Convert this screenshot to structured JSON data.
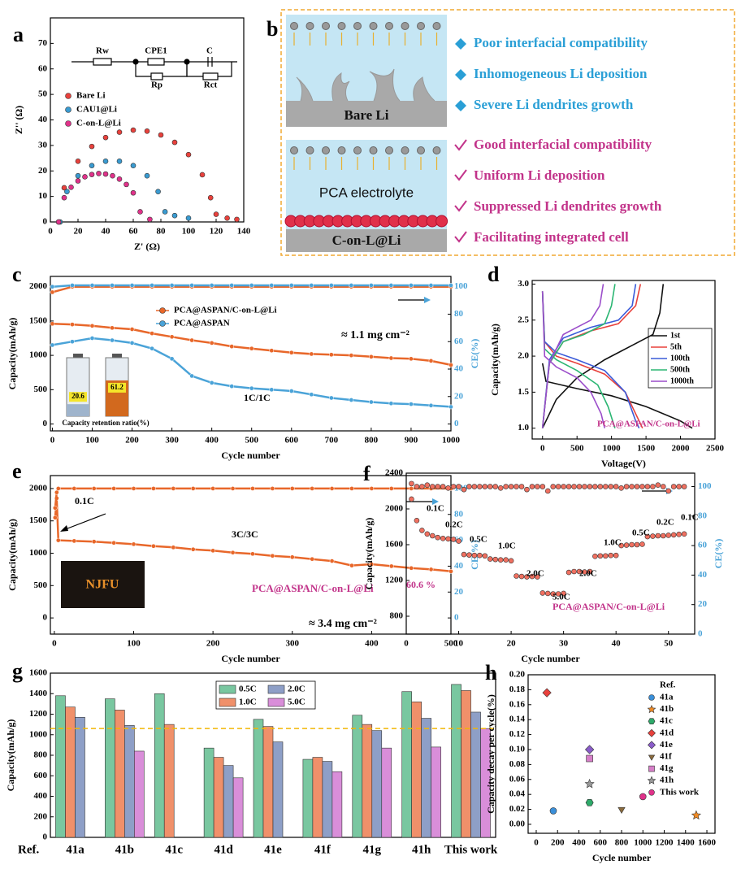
{
  "chart_data": [
    {
      "label": "a",
      "type": "scatter",
      "xlabel": "Z' (Ω)",
      "ylabel": "Z'' (Ω)",
      "xlim": [
        0,
        140
      ],
      "xticks": [
        0,
        20,
        40,
        60,
        80,
        100,
        120,
        140
      ],
      "ylim": [
        0,
        80
      ],
      "yticks": [
        0,
        10,
        20,
        30,
        40,
        50,
        60,
        70
      ],
      "annotations": [
        "Rw",
        "CPE1",
        "Rp",
        "C",
        "Rct"
      ],
      "series": [
        {
          "name": "Bare Li",
          "color": "#e8413c",
          "x": [
            6,
            10,
            20,
            30,
            40,
            50,
            60,
            70,
            80,
            90,
            100,
            110,
            116,
            120,
            128,
            135
          ],
          "values": [
            0,
            13.4,
            23.8,
            29.6,
            33.1,
            35.2,
            36,
            35.6,
            34.1,
            31.2,
            26.4,
            18.5,
            9.5,
            3,
            1.5,
            1
          ]
        },
        {
          "name": "CAU1@Li",
          "color": "#3a9bd1",
          "x": [
            7,
            12,
            20,
            30,
            40,
            50,
            60,
            70,
            78,
            83,
            90,
            100
          ],
          "values": [
            0,
            11.9,
            18.1,
            22.1,
            23.8,
            23.8,
            22.1,
            18.1,
            11.9,
            4,
            2.5,
            1.5
          ]
        },
        {
          "name": "C-on-L@Li",
          "color": "#e0328a",
          "x": [
            6,
            10,
            15,
            20,
            25,
            30,
            35,
            40,
            45,
            50,
            55,
            60,
            65,
            72
          ],
          "values": [
            0,
            9.5,
            13.6,
            16.1,
            17.7,
            18.6,
            19,
            18.8,
            18.1,
            16.8,
            14.7,
            11.4,
            4,
            1
          ]
        }
      ]
    },
    {
      "label": "c",
      "type": "line",
      "marker": true,
      "xlabel": "Cycle number",
      "ylabel": "Capacity(mAh/g)",
      "y2label": "CE(%)",
      "xlim": [
        -5,
        1000
      ],
      "xticks": [
        0,
        100,
        200,
        300,
        400,
        500,
        600,
        700,
        800,
        900,
        1000
      ],
      "ylim": [
        -100,
        2150
      ],
      "yticks": [
        0,
        500,
        1000,
        1500,
        2000
      ],
      "y2lim": [
        -5,
        107.5
      ],
      "y2ticks": [
        0,
        20,
        40,
        60,
        80,
        100
      ],
      "x": [
        0,
        50,
        100,
        150,
        200,
        250,
        300,
        350,
        400,
        450,
        500,
        550,
        600,
        650,
        700,
        750,
        800,
        850,
        900,
        950,
        1000
      ],
      "annotations": [
        "≈ 1.1 mg cm⁻²",
        "1C/1C"
      ],
      "inset": {
        "label": "Capacity retention ratio(%)",
        "values": [
          20.6,
          61.2
        ],
        "colors": [
          "#9fb4cc",
          "#d2691e"
        ]
      },
      "series": [
        {
          "name": "PCA@ASPAN/C-on-L@Li",
          "color": "#e8672a",
          "values": [
            1460,
            1450,
            1430,
            1400,
            1380,
            1320,
            1270,
            1220,
            1180,
            1130,
            1100,
            1070,
            1040,
            1020,
            1010,
            1000,
            980,
            960,
            950,
            920,
            860
          ]
        },
        {
          "name": "PCA@ASPAN",
          "color": "#4aa3d8",
          "values": [
            1150,
            1200,
            1250,
            1220,
            1180,
            1100,
            950,
            700,
            600,
            550,
            520,
            500,
            480,
            430,
            380,
            350,
            320,
            300,
            290,
            270,
            250
          ]
        },
        {
          "color": "#e8672a",
          "axis": "y2",
          "values": [
            96,
            100,
            100,
            100,
            100,
            100,
            100,
            100,
            100,
            100,
            100,
            100,
            100,
            100,
            100,
            100,
            100,
            100,
            100,
            100,
            100
          ]
        },
        {
          "color": "#4aa3d8",
          "axis": "y2",
          "values": [
            100,
            101,
            101,
            101,
            101,
            101,
            101,
            101,
            101,
            101,
            101,
            101,
            101,
            101,
            101,
            101,
            101,
            101,
            101,
            101,
            101
          ]
        }
      ]
    },
    {
      "label": "d",
      "type": "line",
      "xlabel": "Voltage(V)",
      "ylabel": "Capacity(mAh/g)",
      "xlim": [
        -150,
        2500
      ],
      "xticks": [
        0,
        500,
        1000,
        1500,
        2000,
        2500
      ],
      "ylim": [
        0.85,
        3.05
      ],
      "yticks": [
        {
          "value": 1,
          "label": "1.0"
        },
        1.5,
        {
          "value": 2,
          "label": "2.0"
        },
        2.5,
        {
          "value": 3,
          "label": "3.0"
        }
      ],
      "annotations": [
        "PCA@ASPAN/C-on-L@Li"
      ],
      "series": [
        {
          "name": "1st",
          "color": "#111111",
          "x": [
            0,
            50,
            500,
            1000,
            1500,
            2000,
            2170,
            null,
            0,
            200,
            500,
            900,
            1300,
            1600,
            1700,
            1750
          ],
          "values": [
            1.9,
            1.65,
            1.55,
            1.45,
            1.3,
            1.1,
            1.0,
            null,
            1.0,
            1.4,
            1.7,
            1.95,
            2.15,
            2.3,
            2.6,
            3.0
          ]
        },
        {
          "name": "5th",
          "color": "#e8413c",
          "x": [
            0,
            30,
            200,
            500,
            900,
            1200,
            1400,
            1450,
            null,
            0,
            100,
            300,
            700,
            1100,
            1350,
            1420
          ],
          "values": [
            2.9,
            2.2,
            2.0,
            1.9,
            1.75,
            1.5,
            1.1,
            1.0,
            null,
            1.0,
            1.9,
            2.2,
            2.35,
            2.45,
            2.7,
            3.0
          ]
        },
        {
          "name": "100th",
          "color": "#3a5bd9",
          "x": [
            0,
            30,
            200,
            500,
            900,
            1200,
            1350,
            1400,
            null,
            0,
            100,
            300,
            700,
            1100,
            1300,
            1350
          ],
          "values": [
            2.9,
            2.2,
            2.05,
            1.95,
            1.8,
            1.5,
            1.1,
            1.0,
            null,
            1.0,
            1.95,
            2.25,
            2.4,
            2.5,
            2.7,
            3.0
          ]
        },
        {
          "name": "500th",
          "color": "#2bb673",
          "x": [
            0,
            30,
            200,
            500,
            800,
            950,
            1050,
            null,
            0,
            100,
            300,
            600,
            900,
            1000,
            1050
          ],
          "values": [
            2.9,
            2.1,
            1.95,
            1.8,
            1.6,
            1.3,
            1.0,
            null,
            1.0,
            1.9,
            2.2,
            2.3,
            2.45,
            2.7,
            3.0
          ]
        },
        {
          "name": "1000th",
          "color": "#9b4dca",
          "x": [
            0,
            30,
            200,
            500,
            700,
            850,
            900,
            null,
            0,
            100,
            300,
            500,
            700,
            830,
            880
          ],
          "values": [
            2.9,
            2.0,
            1.85,
            1.7,
            1.5,
            1.2,
            1.0,
            null,
            1.0,
            1.9,
            2.3,
            2.4,
            2.5,
            2.7,
            3.0
          ]
        }
      ]
    },
    {
      "label": "e",
      "type": "line",
      "marker": true,
      "xlabel": "Cycle number",
      "ylabel": "Capacity(mAh/g)",
      "y2label": "CE(%)",
      "xlim": [
        -5,
        500
      ],
      "xticks": [
        0,
        100,
        200,
        300,
        400,
        500
      ],
      "ylim": [
        -250,
        2200
      ],
      "yticks": [
        0,
        500,
        1000,
        1500,
        2000
      ],
      "y2lim": [
        -12.5,
        110
      ],
      "y2ticks": [
        0,
        20,
        40,
        60,
        80,
        100
      ],
      "x": [
        1,
        3,
        5,
        25,
        50,
        75,
        100,
        125,
        150,
        175,
        200,
        225,
        250,
        275,
        300,
        325,
        350,
        375,
        400,
        425,
        450,
        475,
        500
      ],
      "annotations": [
        "0.1C",
        "3C/3C",
        "PCA@ASPAN/C-on-L@Li",
        "60.6 %",
        "≈ 3.4 mg cm⁻²",
        "NJFU"
      ],
      "series": [
        {
          "color": "#e8672a",
          "values": [
            1550,
            1850,
            1200,
            1190,
            1180,
            1160,
            1140,
            1110,
            1090,
            1060,
            1040,
            1010,
            990,
            960,
            940,
            910,
            880,
            810,
            830,
            800,
            770,
            750,
            720
          ]
        },
        {
          "color": "#e8672a",
          "axis": "y2",
          "values": [
            85,
            97,
            100,
            100,
            100,
            100,
            100,
            100,
            100,
            100,
            100,
            100,
            100,
            100,
            100,
            100,
            100,
            100,
            100,
            100,
            100,
            100,
            100
          ]
        }
      ]
    },
    {
      "label": "f",
      "type": "scatter",
      "xlabel": "Cycle number",
      "ylabel": "Capacity(mAh/g)",
      "y2label": "CE(%)",
      "xlim": [
        0,
        55
      ],
      "xticks": [
        0,
        10,
        20,
        30,
        40,
        50
      ],
      "ylim": [
        600,
        2400
      ],
      "yticks": [
        800,
        1200,
        1600,
        2000,
        2400
      ],
      "y2lim": [
        0,
        109.1
      ],
      "y2ticks": [
        0,
        20,
        40,
        60,
        80,
        100
      ],
      "x": [
        1,
        2,
        3,
        4,
        5,
        6,
        7,
        8,
        9,
        10,
        11,
        12,
        13,
        14,
        15,
        16,
        17,
        18,
        19,
        20,
        21,
        22,
        23,
        24,
        25,
        26,
        27,
        28,
        29,
        30,
        31,
        32,
        33,
        34,
        35,
        36,
        37,
        38,
        39,
        40,
        41,
        42,
        43,
        44,
        45,
        46,
        47,
        48,
        49,
        50,
        51,
        52,
        53
      ],
      "annotations": [
        "0.1C",
        "0.2C",
        "0.5C",
        "1.0C",
        "2.0C",
        "5.0C",
        "2.0C",
        "1.0C",
        "0.5C",
        "0.2C",
        "0.1C",
        "PCA@ASPAN/C-on-L@Li"
      ],
      "series": [
        {
          "color": "#f07060",
          "values": [
            2110,
            1870,
            1760,
            1720,
            1700,
            1680,
            1670,
            1665,
            1660,
            1640,
            1490,
            1485,
            1480,
            1480,
            1475,
            1440,
            1435,
            1430,
            1430,
            1420,
            1250,
            1245,
            1240,
            1245,
            1240,
            1060,
            1055,
            1050,
            1050,
            1055,
            1290,
            1300,
            1300,
            1295,
            1300,
            1470,
            1475,
            1475,
            1480,
            1480,
            1590,
            1595,
            1600,
            1600,
            1605,
            1690,
            1695,
            1700,
            1700,
            1705,
            1710,
            1715,
            1720
          ]
        },
        {
          "color": "#f07060",
          "axis": "y2",
          "values": [
            102,
            100,
            100,
            101,
            100,
            100,
            100,
            99,
            100,
            100,
            98,
            100,
            100,
            100,
            100,
            100,
            100,
            99,
            100,
            100,
            100,
            100,
            98,
            100,
            100,
            100,
            97,
            100,
            100,
            100,
            100,
            100,
            100,
            100,
            100,
            100,
            100,
            100,
            100,
            100,
            99,
            100,
            100,
            100,
            100,
            100,
            100,
            101,
            100,
            97,
            100,
            100,
            100
          ]
        }
      ]
    },
    {
      "label": "g",
      "type": "bar",
      "ylabel": "Capacity(mAh/g)",
      "categories": [
        "41a",
        "41b",
        "41c",
        "41d",
        "41e",
        "41f",
        "41g",
        "41h",
        "This work"
      ],
      "ylim": [
        0,
        1600
      ],
      "yticks": [
        0,
        200,
        400,
        600,
        800,
        1000,
        1200,
        1400,
        1600
      ],
      "reference_line": 1060,
      "annotations": [
        "Ref."
      ],
      "series": [
        {
          "name": "0.5C",
          "color": "#79c7a0",
          "values": [
            1380,
            1350,
            1400,
            870,
            1150,
            760,
            1190,
            1420,
            1490
          ]
        },
        {
          "name": "1.0C",
          "color": "#f0906a",
          "values": [
            1270,
            1240,
            1100,
            780,
            1080,
            780,
            1100,
            1320,
            1430
          ]
        },
        {
          "name": "2.0C",
          "color": "#8e9fc7",
          "values": [
            1170,
            1090,
            null,
            700,
            930,
            740,
            1040,
            1160,
            1220
          ]
        },
        {
          "name": "5.0C",
          "color": "#d98ed9",
          "values": [
            null,
            840,
            null,
            580,
            null,
            640,
            870,
            880,
            1060
          ]
        }
      ]
    },
    {
      "label": "h",
      "type": "scatter",
      "xlabel": "Cycle number",
      "ylabel": "Capacity decay per cycle(%)",
      "legend_title": "Ref.",
      "xlim": [
        -76,
        1676
      ],
      "xticks": [
        0,
        200,
        400,
        600,
        800,
        1000,
        1200,
        1400,
        1600
      ],
      "ylim": [
        -0.012,
        0.2
      ],
      "yticks": [
        {
          "value": 0,
          "label": "0.00"
        },
        0.02,
        0.04,
        0.06,
        0.08,
        {
          "value": 0.1,
          "label": "0.10"
        },
        0.12,
        0.14,
        0.16,
        0.18,
        {
          "value": 0.2,
          "label": "0.20"
        }
      ],
      "series": [
        {
          "name": "41a",
          "color": "#3a8fd9",
          "marker": "circle",
          "x": [
            160
          ],
          "values": [
            0.018
          ]
        },
        {
          "name": "41b",
          "color": "#f08a24",
          "marker": "star",
          "x": [
            1500
          ],
          "values": [
            0.012
          ]
        },
        {
          "name": "41c",
          "color": "#2eaa6a",
          "marker": "hexagon",
          "x": [
            500
          ],
          "values": [
            0.029
          ]
        },
        {
          "name": "41d",
          "color": "#e8413c",
          "marker": "diamond",
          "x": [
            100
          ],
          "values": [
            0.176
          ]
        },
        {
          "name": "41e",
          "color": "#8a5cc9",
          "marker": "diamond",
          "x": [
            500
          ],
          "values": [
            0.1
          ]
        },
        {
          "name": "41f",
          "color": "#8b6b3d",
          "marker": "triangle",
          "x": [
            800
          ],
          "values": [
            0.02
          ]
        },
        {
          "name": "41g",
          "color": "#d67fc8",
          "marker": "square",
          "x": [
            500
          ],
          "values": [
            0.088
          ]
        },
        {
          "name": "41h",
          "color": "#999999",
          "marker": "star",
          "x": [
            500
          ],
          "values": [
            0.054
          ]
        },
        {
          "name": "This work",
          "color": "#e0328a",
          "marker": "circle",
          "x": [
            1000
          ],
          "values": [
            0.037
          ]
        }
      ]
    }
  ],
  "panel_b": {
    "label": "b",
    "bare_li": "Bare Li",
    "electrolyte": "PCA electrolyte",
    "c_on_l": "C-on-L@Li",
    "problems": [
      "Poor interfacial compatibility",
      "Inhomogeneous Li deposition",
      "Severe Li dendrites growth"
    ],
    "benefits": [
      "Good interfacial compatibility",
      "Uniform Li deposition",
      "Suppressed Li dendrites growth",
      "Facilitating integrated cell"
    ]
  }
}
